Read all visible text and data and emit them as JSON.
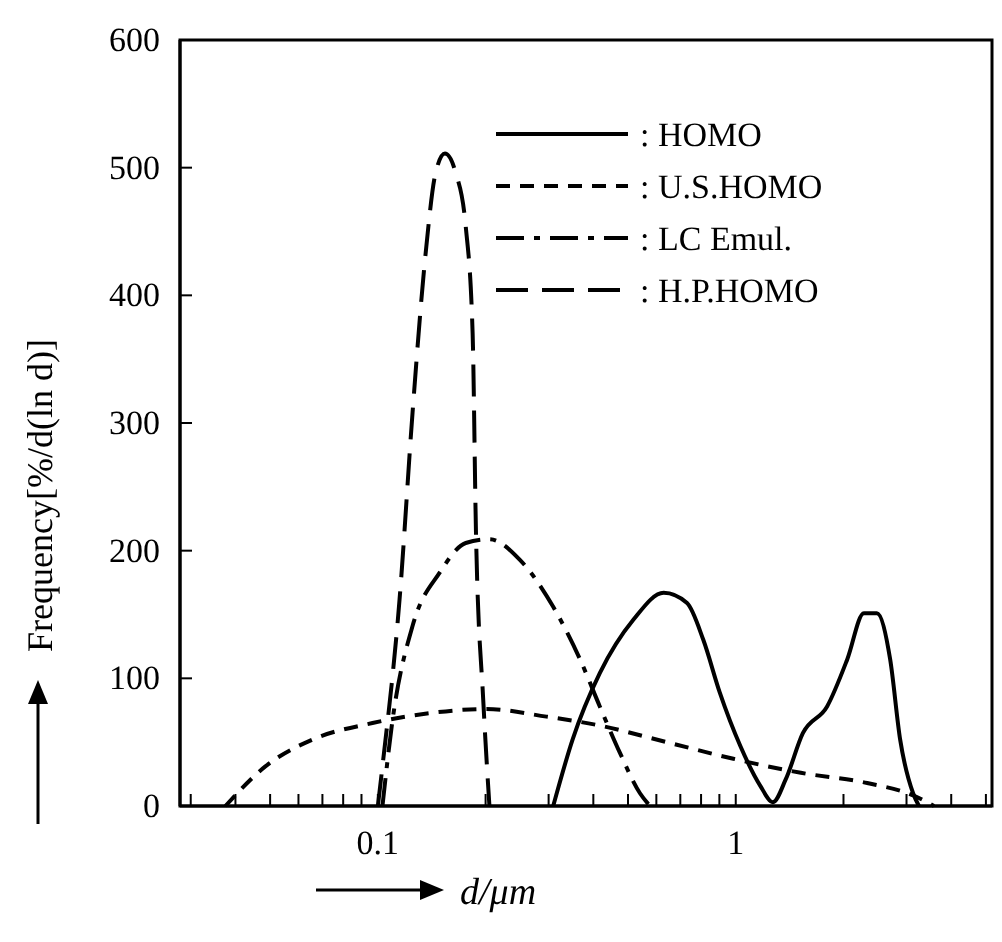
{
  "chart_data": {
    "type": "line",
    "xlabel": "d/μm",
    "ylabel": "Frequency[%/d(ln d)]",
    "log": "x",
    "xlim": [
      0.028,
      5.2
    ],
    "ylim": [
      0,
      600
    ],
    "yticks": [
      0,
      100,
      200,
      300,
      400,
      500,
      600
    ],
    "xticks": [
      {
        "value": 0.03,
        "label": null
      },
      {
        "value": 0.04,
        "label": null
      },
      {
        "value": 0.05,
        "label": null
      },
      {
        "value": 0.06,
        "label": null
      },
      {
        "value": 0.07,
        "label": null
      },
      {
        "value": 0.08,
        "label": null
      },
      {
        "value": 0.09,
        "label": null
      },
      0.1,
      {
        "value": 0.2,
        "label": null
      },
      {
        "value": 0.3,
        "label": null
      },
      {
        "value": 0.4,
        "label": null
      },
      {
        "value": 0.5,
        "label": null
      },
      {
        "value": 0.6,
        "label": null
      },
      {
        "value": 0.7,
        "label": null
      },
      {
        "value": 0.8,
        "label": null
      },
      {
        "value": 0.9,
        "label": null
      },
      1,
      {
        "value": 2,
        "label": null
      },
      {
        "value": 3,
        "label": null
      },
      {
        "value": 4,
        "label": null
      },
      {
        "value": 5,
        "label": null
      }
    ],
    "grid": false,
    "legend": "top right",
    "marker": "none",
    "series": [
      {
        "name": ": HOMO",
        "color": "#000000",
        "line_style": "solid",
        "x": [
          0.309,
          0.35,
          0.417,
          0.518,
          0.629,
          0.731,
          0.812,
          0.902,
          1.03,
          1.17,
          1.27,
          1.38,
          1.54,
          1.8,
          2.05,
          2.28,
          2.48,
          2.7,
          2.88,
          3.13,
          3.25
        ],
        "values": [
          0,
          52,
          104,
          146,
          167,
          159,
          130,
          89,
          47,
          16,
          3,
          21,
          57,
          78,
          115,
          151,
          151,
          115,
          52,
          10,
          0
        ]
      },
      {
        "name": ": U.S.HOMO",
        "color": "#000000",
        "line_style": "dashed",
        "x": [
          0.0375,
          0.0485,
          0.0656,
          0.0966,
          0.142,
          0.201,
          0.296,
          0.417,
          0.641,
          0.985,
          1.52,
          2.33,
          3.15,
          3.58
        ],
        "values": [
          0,
          31,
          52,
          65,
          73,
          76,
          70,
          63,
          50,
          37,
          26,
          18,
          8,
          0
        ]
      },
      {
        "name": ": LC Emul.",
        "color": "#000000",
        "line_style": "dashdot",
        "x": [
          0.103,
          0.11,
          0.125,
          0.149,
          0.176,
          0.205,
          0.249,
          0.309,
          0.367,
          0.417,
          0.474,
          0.54,
          0.576
        ],
        "values": [
          0,
          68,
          141,
          183,
          206,
          209,
          193,
          156,
          115,
          78,
          42,
          10,
          0
        ]
      },
      {
        "name": ": H.P.HOMO",
        "color": "#000000",
        "line_style": "longdash",
        "x": [
          0.1,
          0.103,
          0.115,
          0.125,
          0.136,
          0.145,
          0.154,
          0.165,
          0.176,
          0.184,
          0.188,
          0.197,
          0.205
        ],
        "values": [
          0,
          31,
          162,
          308,
          433,
          496,
          511,
          496,
          454,
          370,
          214,
          83,
          0
        ]
      }
    ]
  }
}
